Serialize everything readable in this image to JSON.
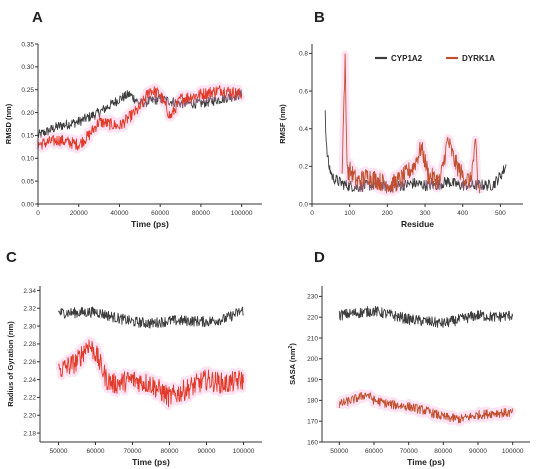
{
  "panels": [
    {
      "letter": "A",
      "chart_index": 0
    },
    {
      "letter": "B",
      "chart_index": 1
    },
    {
      "letter": "C",
      "chart_index": 2
    },
    {
      "letter": "D",
      "chart_index": 3
    }
  ],
  "colors": {
    "cyp1a2": "#3d3d3d",
    "dyrk1a": "#e03b2a",
    "glow": "#ff9ad6",
    "dyrk1a_alt": "#c0502f"
  },
  "chart_data": [
    {
      "type": "line",
      "panel": "A",
      "title": "",
      "xlabel": "Time (ps)",
      "ylabel": "RMSD (nm)",
      "xlim": [
        0,
        110000
      ],
      "ylim": [
        0.0,
        0.35
      ],
      "xticks": [
        0,
        20000,
        40000,
        60000,
        80000,
        100000
      ],
      "yticks": [
        0.0,
        0.05,
        0.1,
        0.15,
        0.2,
        0.25,
        0.3,
        0.35
      ],
      "ytick_labels": [
        "0.00",
        "0.05",
        "0.10",
        "0.15",
        "0.20",
        "0.25",
        "0.30",
        "0.35"
      ],
      "series": [
        {
          "name": "CYP1A2",
          "color": "#3d3d3d",
          "noise": 0.011,
          "x": [
            0,
            10000,
            20000,
            30000,
            40000,
            45000,
            50000,
            60000,
            70000,
            80000,
            90000,
            100000
          ],
          "y": [
            0.15,
            0.17,
            0.18,
            0.2,
            0.23,
            0.24,
            0.22,
            0.23,
            0.22,
            0.22,
            0.23,
            0.24
          ]
        },
        {
          "name": "DYRK1A",
          "color": "#e03b2a",
          "noise": 0.013,
          "x": [
            0,
            10000,
            20000,
            25000,
            30000,
            40000,
            50000,
            55000,
            60000,
            65000,
            70000,
            80000,
            90000,
            100000
          ],
          "y": [
            0.13,
            0.14,
            0.13,
            0.15,
            0.18,
            0.17,
            0.21,
            0.25,
            0.24,
            0.19,
            0.23,
            0.24,
            0.25,
            0.24
          ]
        }
      ]
    },
    {
      "type": "line",
      "panel": "B",
      "title": "",
      "xlabel": "Residue",
      "ylabel": "RMSF (nm)",
      "xlim": [
        0,
        560
      ],
      "ylim": [
        0.0,
        0.85
      ],
      "xticks": [
        0,
        100,
        200,
        300,
        400,
        500
      ],
      "yticks": [
        0.0,
        0.2,
        0.4,
        0.6,
        0.8
      ],
      "ytick_labels": [
        "0.0",
        "0.2",
        "0.4",
        "0.6",
        "0.8"
      ],
      "legend": {
        "position": "top-right",
        "entries": [
          "CYP1A2",
          "DYRK1A"
        ]
      },
      "series": [
        {
          "name": "CYP1A2",
          "color": "#3d3d3d",
          "noise": 0.03,
          "x": [
            35,
            38,
            45,
            55,
            70,
            90,
            120,
            150,
            180,
            210,
            240,
            270,
            300,
            330,
            360,
            390,
            420,
            450,
            480,
            500,
            515
          ],
          "y": [
            0.5,
            0.3,
            0.2,
            0.14,
            0.12,
            0.1,
            0.09,
            0.1,
            0.1,
            0.09,
            0.1,
            0.11,
            0.1,
            0.1,
            0.12,
            0.1,
            0.1,
            0.1,
            0.1,
            0.15,
            0.2
          ]
        },
        {
          "name": "DYRK1A",
          "color": "#c0502f",
          "noise": 0.05,
          "x": [
            80,
            88,
            92,
            96,
            100,
            120,
            150,
            180,
            210,
            240,
            270,
            290,
            310,
            340,
            360,
            380,
            400,
            420,
            435,
            440,
            445
          ],
          "y": [
            0.2,
            0.76,
            0.3,
            0.15,
            0.18,
            0.12,
            0.15,
            0.12,
            0.1,
            0.14,
            0.2,
            0.3,
            0.15,
            0.12,
            0.34,
            0.22,
            0.15,
            0.12,
            0.32,
            0.1,
            0.08
          ]
        }
      ]
    },
    {
      "type": "line",
      "panel": "C",
      "title": "",
      "xlabel": "Time (ps)",
      "ylabel": "Radius of Gyration (nm)",
      "xlim": [
        45000,
        105000
      ],
      "ylim": [
        2.17,
        2.345
      ],
      "xticks": [
        50000,
        60000,
        70000,
        80000,
        90000,
        100000
      ],
      "yticks": [
        2.18,
        2.2,
        2.22,
        2.24,
        2.26,
        2.28,
        2.3,
        2.32,
        2.34
      ],
      "ytick_labels": [
        "2.18",
        "2.20",
        "2.22",
        "2.24",
        "2.26",
        "2.28",
        "2.30",
        "2.32",
        "2.34"
      ],
      "series": [
        {
          "name": "CYP1A2",
          "color": "#3d3d3d",
          "noise": 0.006,
          "x": [
            50000,
            55000,
            60000,
            65000,
            70000,
            75000,
            80000,
            85000,
            90000,
            95000,
            100000
          ],
          "y": [
            2.315,
            2.315,
            2.316,
            2.31,
            2.305,
            2.303,
            2.306,
            2.306,
            2.305,
            2.308,
            2.318
          ]
        },
        {
          "name": "DYRK1A",
          "color": "#e03b2a",
          "noise": 0.012,
          "x": [
            50000,
            55000,
            58000,
            60000,
            63000,
            65000,
            70000,
            75000,
            80000,
            85000,
            90000,
            95000,
            100000
          ],
          "y": [
            2.25,
            2.26,
            2.28,
            2.27,
            2.24,
            2.235,
            2.24,
            2.235,
            2.22,
            2.23,
            2.24,
            2.235,
            2.24
          ]
        }
      ]
    },
    {
      "type": "line",
      "panel": "D",
      "title": "",
      "xlabel": "Time (ps)",
      "ylabel": "SASA (nm²)",
      "ylabel_parts": {
        "main": "SASA (nm",
        "sup": "2",
        "end": ")"
      },
      "xlim": [
        45000,
        105000
      ],
      "ylim": [
        160,
        235
      ],
      "xticks": [
        50000,
        60000,
        70000,
        80000,
        90000,
        100000
      ],
      "yticks": [
        160,
        170,
        180,
        190,
        200,
        210,
        220,
        230
      ],
      "ytick_labels": [
        "160",
        "170",
        "180",
        "190",
        "200",
        "210",
        "220",
        "230"
      ],
      "series": [
        {
          "name": "CYP1A2",
          "color": "#3d3d3d",
          "noise": 2.6,
          "x": [
            50000,
            55000,
            60000,
            65000,
            70000,
            75000,
            80000,
            85000,
            90000,
            95000,
            100000
          ],
          "y": [
            221,
            222,
            223,
            221,
            219,
            218,
            217,
            219,
            221,
            220,
            221
          ]
        },
        {
          "name": "DYRK1A",
          "color": "#c0502f",
          "noise": 2.2,
          "x": [
            50000,
            55000,
            58000,
            60000,
            65000,
            70000,
            75000,
            80000,
            85000,
            90000,
            95000,
            100000
          ],
          "y": [
            178,
            181,
            183,
            180,
            178,
            177,
            175,
            172,
            171,
            173,
            174,
            174
          ]
        }
      ]
    }
  ]
}
